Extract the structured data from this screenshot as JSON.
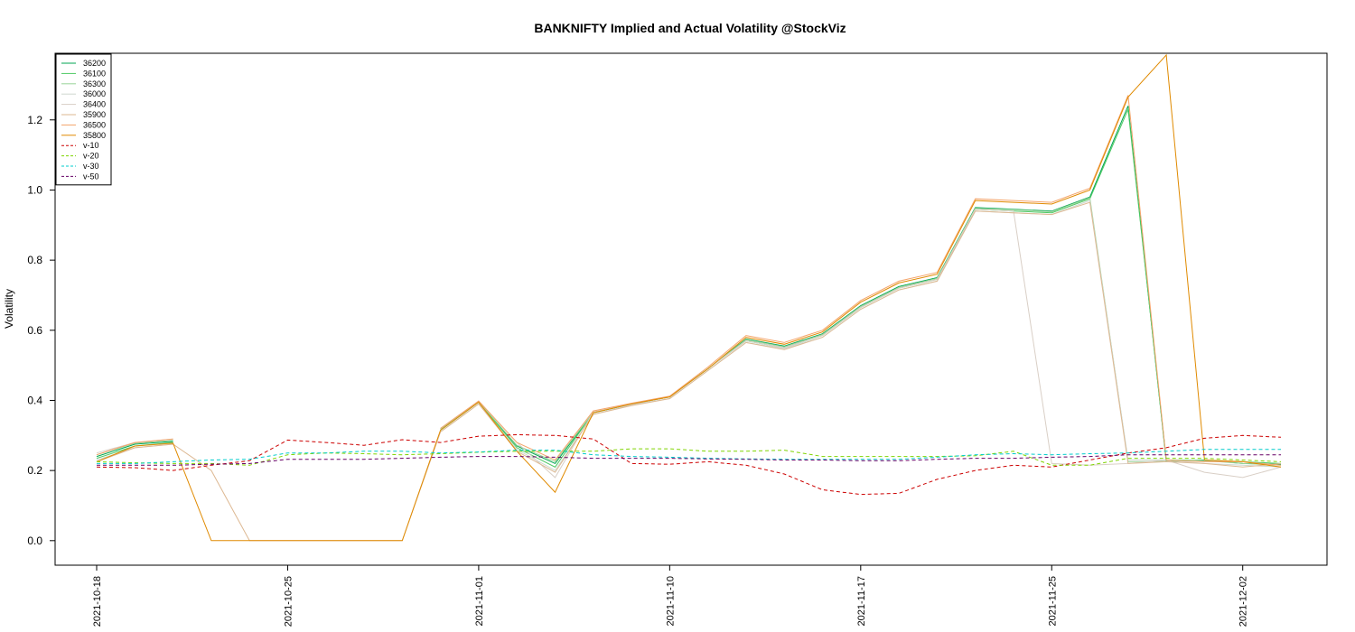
{
  "chart_data": {
    "type": "line",
    "title": "BANKNIFTY Implied and Actual Volatility @StockViz",
    "xlabel": "",
    "ylabel": "Volatility",
    "ylim": [
      -0.07,
      1.39
    ],
    "yticks": [
      0.0,
      0.2,
      0.4,
      0.6,
      0.8,
      1.0,
      1.2
    ],
    "x": [
      "2021-10-18",
      "2021-10-19",
      "2021-10-20",
      "2021-10-21",
      "2021-10-22",
      "2021-10-25",
      "2021-10-26",
      "2021-10-27",
      "2021-10-28",
      "2021-10-29",
      "2021-11-01",
      "2021-11-02",
      "2021-11-03",
      "2021-11-08",
      "2021-11-09",
      "2021-11-10",
      "2021-11-11",
      "2021-11-12",
      "2021-11-15",
      "2021-11-16",
      "2021-11-17",
      "2021-11-18",
      "2021-11-22",
      "2021-11-23",
      "2021-11-24",
      "2021-11-25",
      "2021-11-26",
      "2021-11-29",
      "2021-11-30",
      "2021-12-01",
      "2021-12-02",
      "2021-12-03"
    ],
    "xtick_labels": [
      "2021-10-18",
      "2021-10-25",
      "2021-11-01",
      "2021-11-10",
      "2021-11-17",
      "2021-11-25",
      "2021-12-02"
    ],
    "xtick_positions": [
      0,
      5,
      10,
      15,
      20,
      25,
      30
    ],
    "grid": false,
    "legend_position": "top-left",
    "series": [
      {
        "name": "36200",
        "color": "#00a651",
        "dash": "solid",
        "values": [
          0.24,
          0.275,
          0.283,
          null,
          null,
          null,
          null,
          null,
          null,
          0.315,
          0.395,
          0.27,
          0.22,
          0.365,
          0.39,
          0.41,
          0.49,
          0.575,
          0.555,
          0.59,
          0.67,
          0.725,
          0.75,
          0.95,
          0.945,
          0.94,
          0.98,
          1.24,
          0.225,
          0.23,
          0.22,
          0.218
        ]
      },
      {
        "name": "36100",
        "color": "#4dc863",
        "dash": "solid",
        "values": [
          0.235,
          0.27,
          0.28,
          null,
          null,
          null,
          null,
          null,
          null,
          0.315,
          0.395,
          0.265,
          0.21,
          0.365,
          0.39,
          0.41,
          0.49,
          0.57,
          0.55,
          0.585,
          0.665,
          0.72,
          0.745,
          0.945,
          0.94,
          0.935,
          0.975,
          1.23,
          0.23,
          0.228,
          0.225,
          0.22
        ]
      },
      {
        "name": "36300",
        "color": "#9ad49a",
        "dash": "solid",
        "values": [
          0.245,
          0.278,
          0.286,
          null,
          null,
          null,
          null,
          null,
          null,
          0.318,
          0.396,
          0.272,
          0.225,
          0.366,
          0.39,
          0.41,
          0.49,
          0.573,
          0.553,
          0.588,
          0.668,
          0.722,
          0.748,
          0.948,
          0.944,
          0.938,
          0.978,
          0.225,
          0.226,
          0.228,
          0.22,
          0.215
        ]
      },
      {
        "name": "36000",
        "color": "#cfd8cf",
        "dash": "solid",
        "values": [
          0.23,
          0.265,
          0.275,
          null,
          null,
          null,
          null,
          null,
          null,
          0.31,
          0.39,
          0.26,
          0.2,
          0.36,
          0.388,
          0.405,
          0.485,
          0.565,
          0.548,
          0.58,
          0.66,
          0.715,
          0.74,
          0.94,
          0.935,
          0.93,
          0.97,
          0.23,
          0.23,
          0.22,
          0.215,
          0.21
        ]
      },
      {
        "name": "36400",
        "color": "#d9cfc6",
        "dash": "solid",
        "values": [
          0.25,
          0.28,
          0.29,
          null,
          null,
          null,
          null,
          null,
          null,
          0.32,
          0.398,
          0.28,
          0.18,
          0.367,
          0.39,
          0.41,
          0.49,
          0.57,
          0.55,
          0.585,
          0.665,
          0.72,
          0.745,
          0.945,
          0.94,
          0.22,
          0.215,
          0.22,
          0.23,
          0.195,
          0.18,
          0.21
        ]
      },
      {
        "name": "35900",
        "color": "#ddb892",
        "dash": "solid",
        "values": [
          0.225,
          0.265,
          0.275,
          0.2,
          0.0,
          0.0,
          0.0,
          0.0,
          0.0,
          0.31,
          0.39,
          0.255,
          0.195,
          0.36,
          0.385,
          0.405,
          0.485,
          0.565,
          0.545,
          0.58,
          0.66,
          0.715,
          0.74,
          0.94,
          0.935,
          0.93,
          0.965,
          0.22,
          0.225,
          0.22,
          0.21,
          0.22
        ]
      },
      {
        "name": "36500",
        "color": "#f4a46a",
        "dash": "solid",
        "values": [
          0.245,
          0.28,
          0.29,
          null,
          null,
          null,
          null,
          null,
          null,
          0.32,
          0.398,
          0.28,
          0.23,
          0.37,
          0.392,
          0.412,
          0.495,
          0.585,
          0.565,
          0.6,
          0.685,
          0.74,
          0.765,
          0.975,
          0.97,
          0.965,
          1.005,
          1.27,
          0.23,
          0.225,
          0.225,
          0.215
        ]
      },
      {
        "name": "35800",
        "color": "#e08a00",
        "dash": "solid",
        "values": [
          0.225,
          0.27,
          0.278,
          0.0,
          0.0,
          0.0,
          0.0,
          0.0,
          0.0,
          0.315,
          0.395,
          0.255,
          0.138,
          0.365,
          0.39,
          0.41,
          0.49,
          0.58,
          0.56,
          0.595,
          0.68,
          0.735,
          0.76,
          0.97,
          0.965,
          0.96,
          1.0,
          1.265,
          1.385,
          0.23,
          0.225,
          0.21
        ]
      },
      {
        "name": "v-10",
        "color": "#cc0000",
        "dash": "4,3",
        "values": [
          0.21,
          0.208,
          0.2,
          0.215,
          0.228,
          0.287,
          0.28,
          0.272,
          0.288,
          0.28,
          0.298,
          0.302,
          0.3,
          0.29,
          0.22,
          0.218,
          0.225,
          0.215,
          0.19,
          0.145,
          0.132,
          0.135,
          0.175,
          0.2,
          0.215,
          0.21,
          0.23,
          0.25,
          0.265,
          0.292,
          0.3,
          0.295
        ]
      },
      {
        "name": "v-20",
        "color": "#7fd400",
        "dash": "4,3",
        "values": [
          0.225,
          0.222,
          0.22,
          0.22,
          0.215,
          0.245,
          0.25,
          0.248,
          0.245,
          0.248,
          0.252,
          0.255,
          0.255,
          0.255,
          0.262,
          0.262,
          0.255,
          0.255,
          0.258,
          0.24,
          0.24,
          0.24,
          0.24,
          0.242,
          0.255,
          0.215,
          0.215,
          0.235,
          0.235,
          0.235,
          0.23,
          0.225
        ]
      },
      {
        "name": "v-30",
        "color": "#00cccc",
        "dash": "4,3",
        "values": [
          0.22,
          0.22,
          0.225,
          0.23,
          0.232,
          0.25,
          0.25,
          0.255,
          0.255,
          0.25,
          0.253,
          0.258,
          0.258,
          0.245,
          0.24,
          0.238,
          0.235,
          0.233,
          0.232,
          0.232,
          0.232,
          0.232,
          0.238,
          0.245,
          0.248,
          0.245,
          0.248,
          0.25,
          0.255,
          0.26,
          0.26,
          0.26
        ]
      },
      {
        "name": "v-50",
        "color": "#660066",
        "dash": "4,3",
        "values": [
          0.215,
          0.215,
          0.215,
          0.218,
          0.22,
          0.232,
          0.232,
          0.232,
          0.235,
          0.238,
          0.24,
          0.24,
          0.238,
          0.235,
          0.235,
          0.235,
          0.233,
          0.232,
          0.23,
          0.23,
          0.228,
          0.228,
          0.232,
          0.235,
          0.235,
          0.238,
          0.24,
          0.245,
          0.245,
          0.245,
          0.245,
          0.245
        ]
      }
    ]
  }
}
